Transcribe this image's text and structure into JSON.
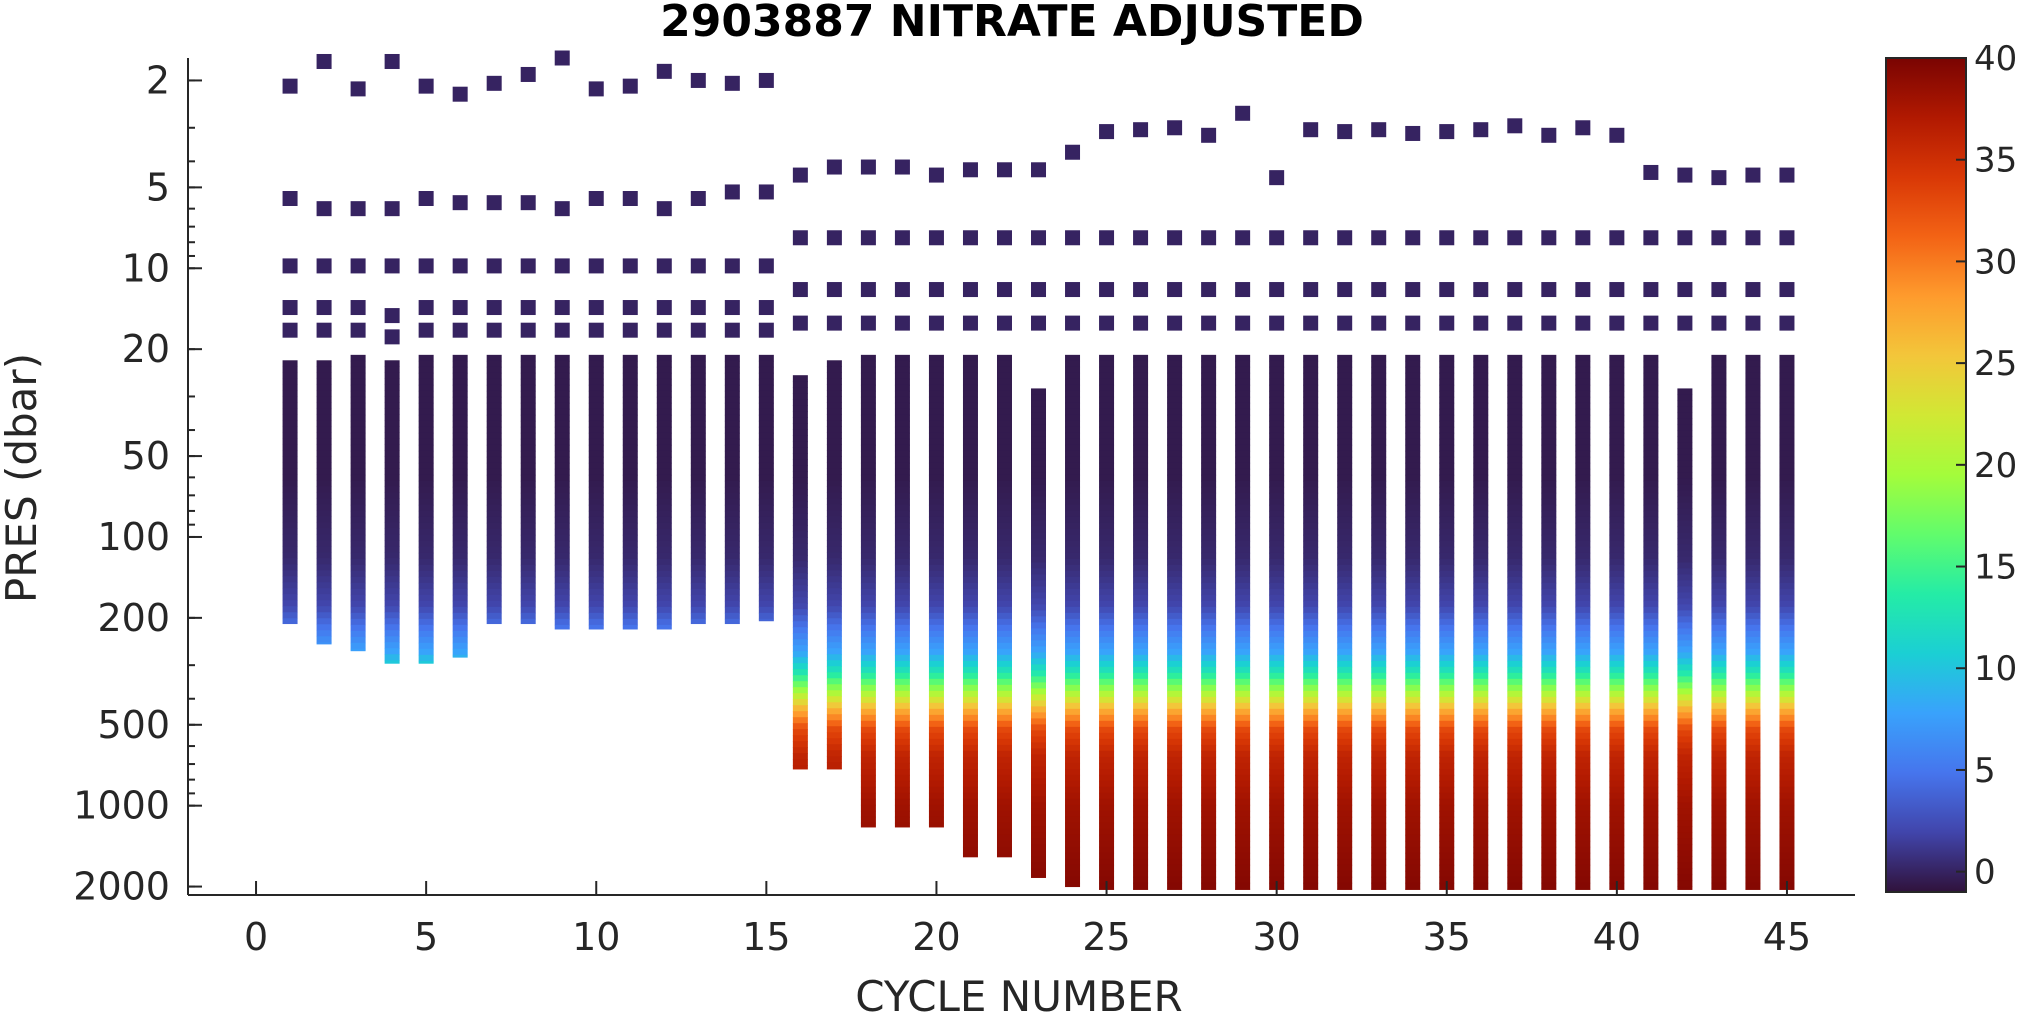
{
  "chart_data": {
    "type": "scatter",
    "title": "2903887  NITRATE ADJUSTED",
    "xlabel": "CYCLE NUMBER",
    "ylabel": "PRES (dbar)",
    "xlim": [
      -2,
      47
    ],
    "ylim": [
      1.65,
      2150
    ],
    "y_scale": "log",
    "y_reversed": true,
    "x_ticks": [
      0,
      5,
      10,
      15,
      20,
      25,
      30,
      35,
      40,
      45
    ],
    "y_ticks": [
      2,
      5,
      10,
      20,
      50,
      100,
      200,
      500,
      1000,
      2000
    ],
    "grid": false,
    "colormap": "turbo",
    "colorbar": {
      "min": -1,
      "max": 40,
      "ticks": [
        0,
        5,
        10,
        15,
        20,
        25,
        30,
        35,
        40
      ],
      "colors": [
        "#30123b",
        "#4145ab",
        "#4675ed",
        "#39a2fc",
        "#1bcfd4",
        "#24eca6",
        "#61fc6c",
        "#a4fc3b",
        "#d1e834",
        "#f3c63a",
        "#fe9b2d",
        "#f36315",
        "#d93806",
        "#b11901",
        "#7a0402"
      ]
    },
    "cycles": [
      1,
      2,
      3,
      4,
      5,
      6,
      7,
      8,
      9,
      10,
      11,
      12,
      13,
      14,
      15,
      16,
      17,
      18,
      19,
      20,
      21,
      22,
      23,
      24,
      25,
      26,
      27,
      28,
      29,
      30,
      31,
      32,
      33,
      34,
      35,
      36,
      37,
      38,
      39,
      40,
      41,
      42,
      43,
      44,
      45
    ],
    "surface_pressure": [
      2.1,
      1.7,
      2.15,
      1.7,
      2.1,
      2.25,
      2.05,
      1.9,
      1.65,
      2.15,
      2.1,
      1.85,
      2.0,
      2.05,
      2.0,
      4.5,
      4.2,
      4.2,
      4.2,
      4.5,
      4.3,
      4.3,
      4.3,
      3.7,
      3.1,
      3.05,
      3.0,
      3.2,
      2.65,
      4.6,
      3.05,
      3.1,
      3.05,
      3.15,
      3.1,
      3.05,
      2.95,
      3.2,
      3.0,
      3.2,
      4.4,
      4.5,
      4.6,
      4.5,
      4.5
    ],
    "upper_samples": [
      [
        5.5,
        9.8,
        14,
        17
      ],
      [
        6,
        9.8,
        14,
        17
      ],
      [
        6,
        9.8,
        14,
        17
      ],
      [
        6,
        9.8,
        15,
        18
      ],
      [
        5.5,
        9.8,
        14,
        17
      ],
      [
        5.7,
        9.8,
        14,
        17
      ],
      [
        5.7,
        9.8,
        14,
        17
      ],
      [
        5.7,
        9.8,
        14,
        17
      ],
      [
        6,
        9.8,
        14,
        17
      ],
      [
        5.5,
        9.8,
        14,
        17
      ],
      [
        5.5,
        9.8,
        14,
        17
      ],
      [
        6,
        9.8,
        14,
        17
      ],
      [
        5.5,
        9.8,
        14,
        17
      ],
      [
        5.2,
        9.8,
        14,
        17
      ],
      [
        5.2,
        9.8,
        14,
        17
      ]
    ],
    "deep_upper_samples": [
      7.7,
      12,
      16
    ],
    "profile_top": [
      22,
      22,
      21,
      22,
      21,
      21,
      21,
      21,
      21,
      21,
      21,
      21,
      21,
      21,
      21,
      25,
      22,
      21,
      21,
      21,
      21,
      21,
      28,
      21,
      21,
      21,
      21,
      21,
      21,
      21,
      21,
      21,
      21,
      21,
      21,
      21,
      21,
      21,
      21,
      21,
      21,
      28,
      21,
      21,
      21
    ],
    "profile_bottom": [
      210,
      250,
      265,
      295,
      295,
      280,
      210,
      210,
      220,
      220,
      220,
      220,
      210,
      210,
      205,
      730,
      730,
      1200,
      1200,
      1200,
      1550,
      1550,
      1850,
      2000,
      2050,
      2050,
      2050,
      2050,
      2050,
      2050,
      2050,
      2050,
      2050,
      2050,
      2050,
      2050,
      2050,
      2050,
      2050,
      2050,
      2050,
      2050,
      2050,
      2050,
      2050
    ],
    "nitrate_profile": [
      {
        "pres": 2,
        "no3": -0.5
      },
      {
        "pres": 60,
        "no3": -0.5
      },
      {
        "pres": 120,
        "no3": 0.3
      },
      {
        "pres": 180,
        "no3": 2
      },
      {
        "pres": 220,
        "no3": 5
      },
      {
        "pres": 270,
        "no3": 8
      },
      {
        "pres": 320,
        "no3": 13
      },
      {
        "pres": 380,
        "no3": 20
      },
      {
        "pres": 440,
        "no3": 27
      },
      {
        "pres": 520,
        "no3": 33
      },
      {
        "pres": 650,
        "no3": 36
      },
      {
        "pres": 1000,
        "no3": 38
      },
      {
        "pres": 2100,
        "no3": 39.5
      }
    ]
  }
}
